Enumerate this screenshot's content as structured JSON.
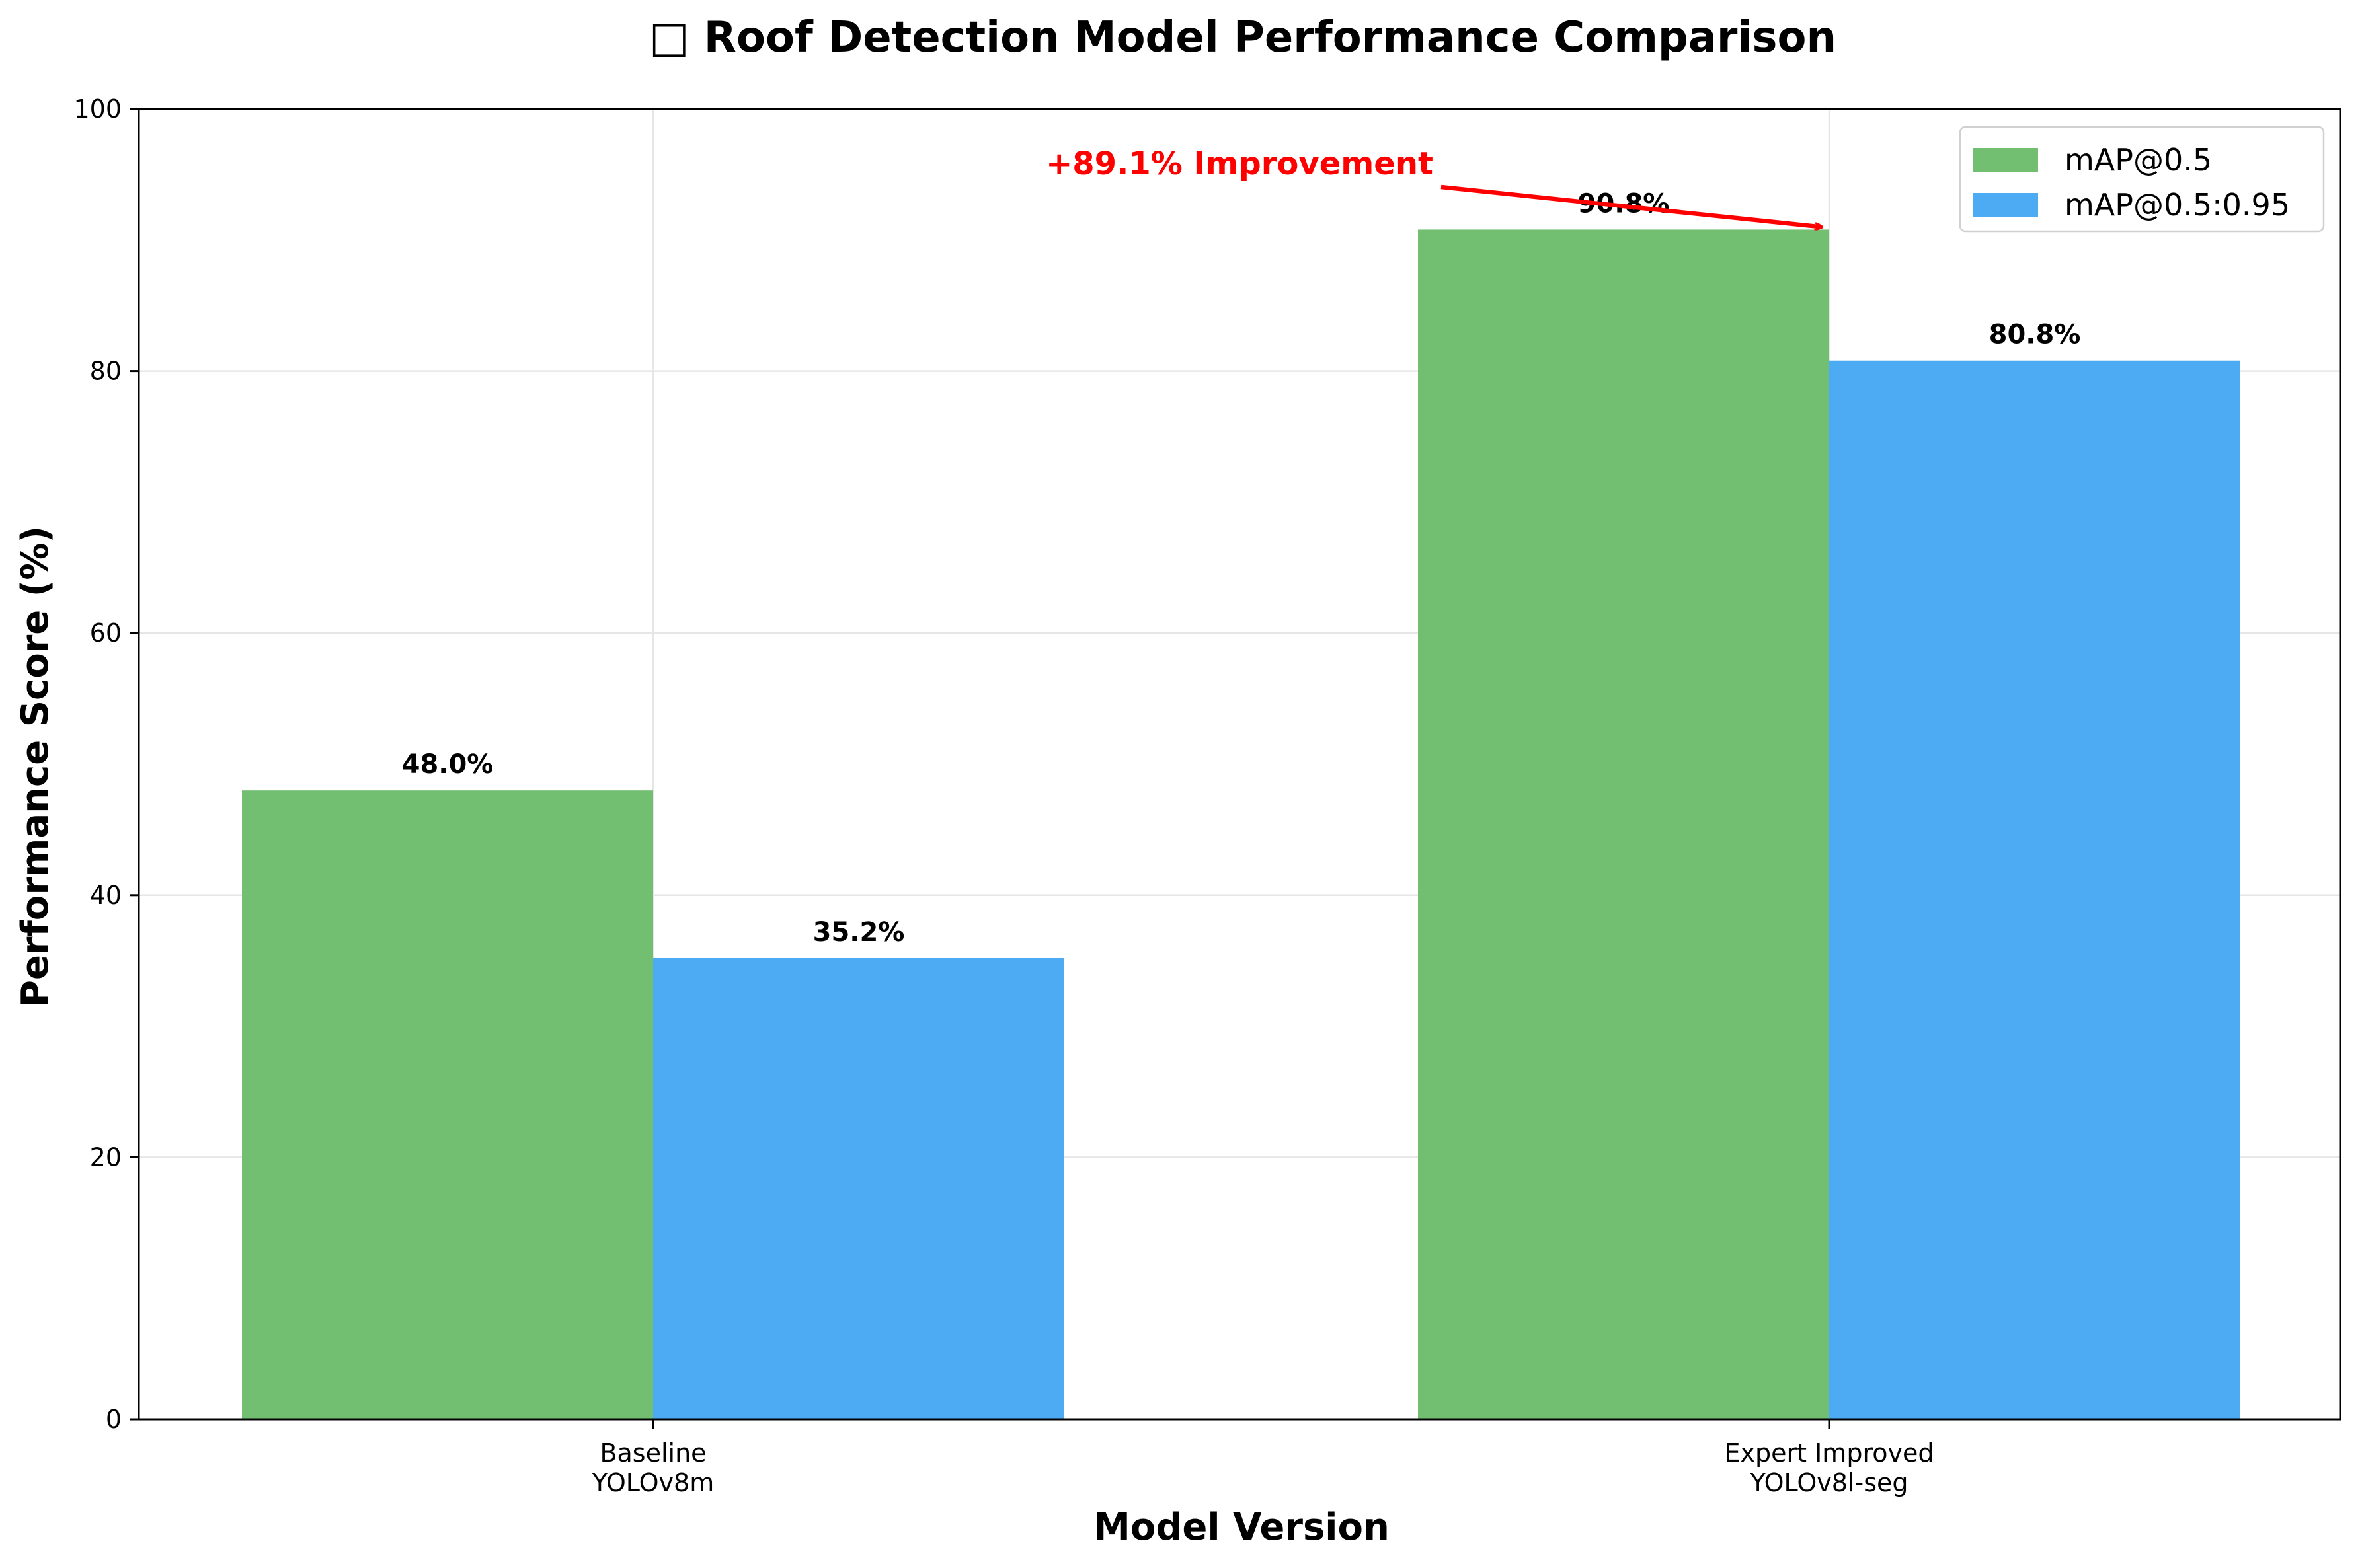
{
  "chart_data": {
    "type": "bar",
    "title": "□ Roof Detection Model Performance Comparison",
    "xlabel": "Model Version",
    "ylabel": "Performance Score (%)",
    "categories": [
      [
        "Baseline",
        "YOLOv8m"
      ],
      [
        "Expert Improved",
        "YOLOv8l-seg"
      ]
    ],
    "series": [
      {
        "name": "mAP@0.5",
        "values": [
          48.0,
          90.8
        ],
        "labels": [
          "48.0%",
          "90.8%"
        ],
        "color": "#72BF72"
      },
      {
        "name": "mAP@0.5:0.95",
        "values": [
          35.2,
          80.8
        ],
        "labels": [
          "35.2%",
          "80.8%"
        ],
        "color": "#4DABF4"
      }
    ],
    "ylim": [
      0,
      100
    ],
    "yticks": [
      0,
      20,
      40,
      60,
      80,
      100
    ],
    "grid": true,
    "legend_position": "top-right",
    "annotation": {
      "text": "+89.1% Improvement",
      "color": "#FF0000",
      "target_category": 1,
      "target_series": 0
    }
  }
}
